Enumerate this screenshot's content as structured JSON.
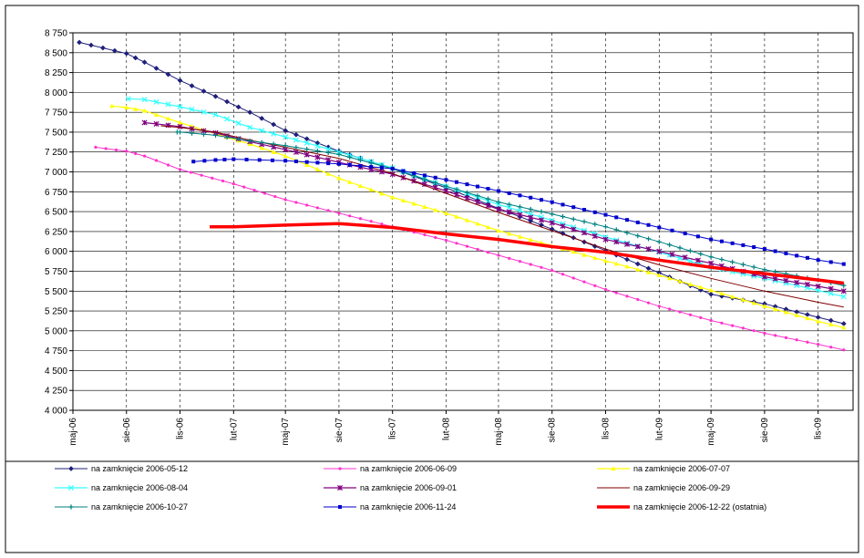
{
  "chart_data": {
    "type": "line",
    "title": "",
    "xlabel": "",
    "ylabel": "",
    "ylim": [
      4000,
      8750
    ],
    "ytick_step": 250,
    "xlim": [
      "2006-05-01",
      "2009-12-31"
    ],
    "x_ticks": [
      {
        "date": "2006-05-01",
        "label": "maj-06"
      },
      {
        "date": "2006-08-01",
        "label": "sie-06"
      },
      {
        "date": "2006-11-01",
        "label": "lis-06"
      },
      {
        "date": "2007-02-01",
        "label": "lut-07"
      },
      {
        "date": "2007-05-01",
        "label": "maj-07"
      },
      {
        "date": "2007-08-01",
        "label": "sie-07"
      },
      {
        "date": "2007-11-01",
        "label": "lis-07"
      },
      {
        "date": "2008-02-01",
        "label": "lut-08"
      },
      {
        "date": "2008-05-01",
        "label": "maj-08"
      },
      {
        "date": "2008-08-01",
        "label": "sie-08"
      },
      {
        "date": "2008-11-01",
        "label": "lis-08"
      },
      {
        "date": "2009-02-01",
        "label": "lut-09"
      },
      {
        "date": "2009-05-01",
        "label": "maj-09"
      },
      {
        "date": "2009-08-01",
        "label": "sie-09"
      },
      {
        "date": "2009-11-01",
        "label": "lis-09"
      }
    ],
    "grid": {
      "horizontal": true,
      "vertical": true,
      "vertical_style": "dashed"
    },
    "legend_position": "bottom",
    "series": [
      {
        "name": "na zamknięcie 2006-05-12",
        "color": "#1f1f7a",
        "marker": "diamond",
        "width": 1,
        "points": [
          [
            "2006-05-12",
            8630
          ],
          [
            "2006-08-01",
            8490
          ],
          [
            "2006-09-01",
            8380
          ],
          [
            "2006-11-01",
            8150
          ],
          [
            "2007-01-01",
            7950
          ],
          [
            "2007-03-01",
            7750
          ],
          [
            "2007-05-01",
            7520
          ],
          [
            "2007-08-01",
            7260
          ],
          [
            "2007-11-01",
            7040
          ],
          [
            "2008-02-01",
            6800
          ],
          [
            "2008-05-01",
            6540
          ],
          [
            "2008-08-01",
            6280
          ],
          [
            "2008-11-01",
            6010
          ],
          [
            "2009-02-01",
            5730
          ],
          [
            "2009-05-01",
            5460
          ],
          [
            "2009-08-01",
            5340
          ],
          [
            "2009-11-01",
            5170
          ],
          [
            "2009-12-15",
            5090
          ]
        ]
      },
      {
        "name": "na zamknięcie 2006-06-09",
        "color": "#ff33cc",
        "marker": "dot",
        "width": 1,
        "points": [
          [
            "2006-06-09",
            7310
          ],
          [
            "2006-08-01",
            7260
          ],
          [
            "2006-09-01",
            7200
          ],
          [
            "2006-11-01",
            7030
          ],
          [
            "2007-02-01",
            6850
          ],
          [
            "2007-05-01",
            6650
          ],
          [
            "2007-08-01",
            6480
          ],
          [
            "2007-11-01",
            6310
          ],
          [
            "2008-02-01",
            6140
          ],
          [
            "2008-05-01",
            5950
          ],
          [
            "2008-08-01",
            5760
          ],
          [
            "2008-11-01",
            5520
          ],
          [
            "2009-02-01",
            5310
          ],
          [
            "2009-05-01",
            5130
          ],
          [
            "2009-08-01",
            4970
          ],
          [
            "2009-11-01",
            4830
          ],
          [
            "2009-12-15",
            4760
          ]
        ]
      },
      {
        "name": "na zamknięcie 2006-07-07",
        "color": "#ffff00",
        "marker": "triangle",
        "width": 1.2,
        "points": [
          [
            "2006-07-07",
            7830
          ],
          [
            "2006-08-01",
            7810
          ],
          [
            "2006-09-01",
            7770
          ],
          [
            "2006-11-01",
            7620
          ],
          [
            "2007-01-01",
            7480
          ],
          [
            "2007-03-01",
            7350
          ],
          [
            "2007-05-01",
            7200
          ],
          [
            "2007-08-01",
            6920
          ],
          [
            "2007-11-01",
            6680
          ],
          [
            "2008-02-01",
            6480
          ],
          [
            "2008-05-01",
            6260
          ],
          [
            "2008-08-01",
            6070
          ],
          [
            "2008-11-01",
            5880
          ],
          [
            "2009-02-01",
            5700
          ],
          [
            "2009-05-01",
            5510
          ],
          [
            "2009-08-01",
            5310
          ],
          [
            "2009-11-01",
            5120
          ],
          [
            "2009-12-15",
            5040
          ]
        ]
      },
      {
        "name": "na zamknięcie 2006-08-04",
        "color": "#33ffff",
        "marker": "x",
        "width": 1.2,
        "points": [
          [
            "2006-08-04",
            7920
          ],
          [
            "2006-09-01",
            7910
          ],
          [
            "2006-11-01",
            7820
          ],
          [
            "2007-01-01",
            7720
          ],
          [
            "2007-03-01",
            7560
          ],
          [
            "2007-05-01",
            7440
          ],
          [
            "2007-08-01",
            7250
          ],
          [
            "2007-11-01",
            7050
          ],
          [
            "2008-02-01",
            6820
          ],
          [
            "2008-05-01",
            6590
          ],
          [
            "2008-08-01",
            6390
          ],
          [
            "2008-11-01",
            6180
          ],
          [
            "2009-02-01",
            5990
          ],
          [
            "2009-05-01",
            5800
          ],
          [
            "2009-08-01",
            5660
          ],
          [
            "2009-11-01",
            5510
          ],
          [
            "2009-12-15",
            5430
          ]
        ]
      },
      {
        "name": "na zamknięcie 2006-09-01",
        "color": "#800080",
        "marker": "star",
        "width": 1.2,
        "points": [
          [
            "2006-09-01",
            7620
          ],
          [
            "2006-11-01",
            7570
          ],
          [
            "2007-01-01",
            7490
          ],
          [
            "2007-03-01",
            7380
          ],
          [
            "2007-05-01",
            7280
          ],
          [
            "2007-08-01",
            7120
          ],
          [
            "2007-11-01",
            6970
          ],
          [
            "2008-02-01",
            6760
          ],
          [
            "2008-05-01",
            6530
          ],
          [
            "2008-08-01",
            6360
          ],
          [
            "2008-11-01",
            6150
          ],
          [
            "2009-02-01",
            6000
          ],
          [
            "2009-05-01",
            5850
          ],
          [
            "2009-08-01",
            5680
          ],
          [
            "2009-11-01",
            5560
          ],
          [
            "2009-12-15",
            5500
          ]
        ]
      },
      {
        "name": "na zamknięcie 2006-09-29",
        "color": "#800000",
        "marker": "none",
        "width": 1,
        "points": [
          [
            "2006-09-29",
            7580
          ],
          [
            "2006-11-01",
            7560
          ],
          [
            "2007-01-01",
            7500
          ],
          [
            "2007-03-01",
            7400
          ],
          [
            "2007-05-01",
            7310
          ],
          [
            "2007-08-01",
            7170
          ],
          [
            "2007-11-01",
            6980
          ],
          [
            "2008-02-01",
            6730
          ],
          [
            "2008-05-01",
            6490
          ],
          [
            "2008-08-01",
            6260
          ],
          [
            "2008-11-01",
            6030
          ],
          [
            "2009-02-01",
            5830
          ],
          [
            "2009-05-01",
            5660
          ],
          [
            "2009-08-01",
            5500
          ],
          [
            "2009-11-01",
            5360
          ],
          [
            "2009-12-15",
            5300
          ]
        ]
      },
      {
        "name": "na zamknięcie 2006-10-27",
        "color": "#008080",
        "marker": "plus",
        "width": 1,
        "points": [
          [
            "2006-10-27",
            7500
          ],
          [
            "2006-11-01",
            7500
          ],
          [
            "2007-01-01",
            7460
          ],
          [
            "2007-03-01",
            7390
          ],
          [
            "2007-05-01",
            7330
          ],
          [
            "2007-08-01",
            7220
          ],
          [
            "2007-11-01",
            7040
          ],
          [
            "2008-02-01",
            6820
          ],
          [
            "2008-05-01",
            6620
          ],
          [
            "2008-08-01",
            6470
          ],
          [
            "2008-11-01",
            6310
          ],
          [
            "2009-02-01",
            6120
          ],
          [
            "2009-05-01",
            5930
          ],
          [
            "2009-08-01",
            5770
          ],
          [
            "2009-11-01",
            5640
          ],
          [
            "2009-12-15",
            5570
          ]
        ]
      },
      {
        "name": "na zamknięcie 2006-11-24",
        "color": "#0000cc",
        "marker": "square",
        "width": 1,
        "points": [
          [
            "2006-11-24",
            7130
          ],
          [
            "2007-01-01",
            7150
          ],
          [
            "2007-02-01",
            7160
          ],
          [
            "2007-05-01",
            7140
          ],
          [
            "2007-08-01",
            7100
          ],
          [
            "2007-11-01",
            7040
          ],
          [
            "2008-02-01",
            6900
          ],
          [
            "2008-05-01",
            6760
          ],
          [
            "2008-08-01",
            6620
          ],
          [
            "2008-11-01",
            6460
          ],
          [
            "2009-02-01",
            6300
          ],
          [
            "2009-05-01",
            6150
          ],
          [
            "2009-08-01",
            6030
          ],
          [
            "2009-11-01",
            5890
          ],
          [
            "2009-12-15",
            5840
          ]
        ]
      },
      {
        "name": "na zamknięcie 2006-12-22 (ostatnia)",
        "color": "#ff0000",
        "marker": "none",
        "width": 3.5,
        "points": [
          [
            "2006-12-22",
            6310
          ],
          [
            "2007-02-01",
            6310
          ],
          [
            "2007-05-01",
            6330
          ],
          [
            "2007-08-01",
            6350
          ],
          [
            "2007-11-01",
            6300
          ],
          [
            "2008-02-01",
            6220
          ],
          [
            "2008-05-01",
            6150
          ],
          [
            "2008-08-01",
            6060
          ],
          [
            "2008-11-01",
            5990
          ],
          [
            "2009-02-01",
            5890
          ],
          [
            "2009-05-01",
            5800
          ],
          [
            "2009-08-01",
            5720
          ],
          [
            "2009-11-01",
            5640
          ],
          [
            "2009-12-15",
            5600
          ]
        ]
      }
    ]
  }
}
